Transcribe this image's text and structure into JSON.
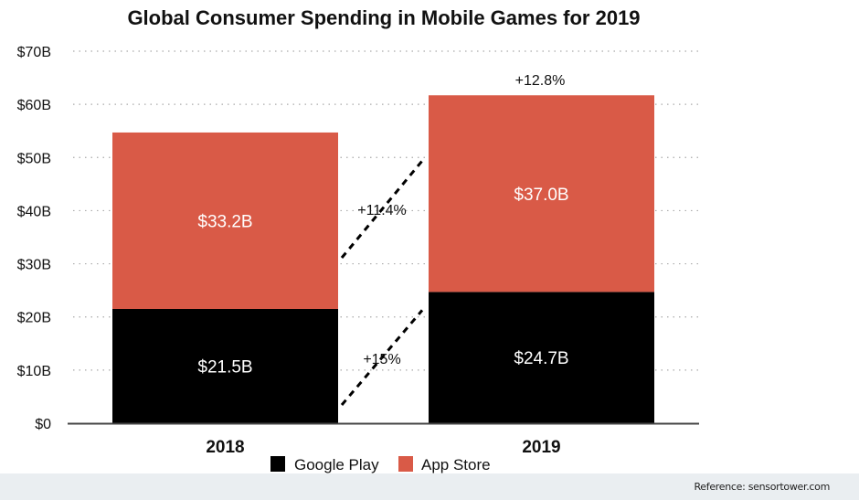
{
  "chart_data": {
    "type": "bar",
    "stacked": true,
    "title": "Global Consumer Spending in Mobile Games for 2019",
    "categories": [
      "2018",
      "2019"
    ],
    "series": [
      {
        "name": "Google Play",
        "values": [
          21.5,
          24.7
        ],
        "labels": [
          "$21.5B",
          "$24.7B"
        ],
        "color": "#000000"
      },
      {
        "name": "App Store",
        "values": [
          33.2,
          37.0
        ],
        "labels": [
          "$33.2B",
          "$37.0B"
        ],
        "color": "#d95a47"
      }
    ],
    "ylim": [
      0,
      70
    ],
    "yticks": [
      0,
      10,
      20,
      30,
      40,
      50,
      60,
      70
    ],
    "ytick_labels": [
      "$0",
      "$10B",
      "$20B",
      "$30B",
      "$40B",
      "$50B",
      "$60B",
      "$70B"
    ],
    "grid": "horizontal dotted",
    "legend": "bottom-center",
    "annotations": {
      "google_play_growth": "+15%",
      "app_store_growth": "+11.4%",
      "total_growth": "+12.8%"
    }
  },
  "footer": {
    "reference": "Reference: sensortower.com"
  }
}
